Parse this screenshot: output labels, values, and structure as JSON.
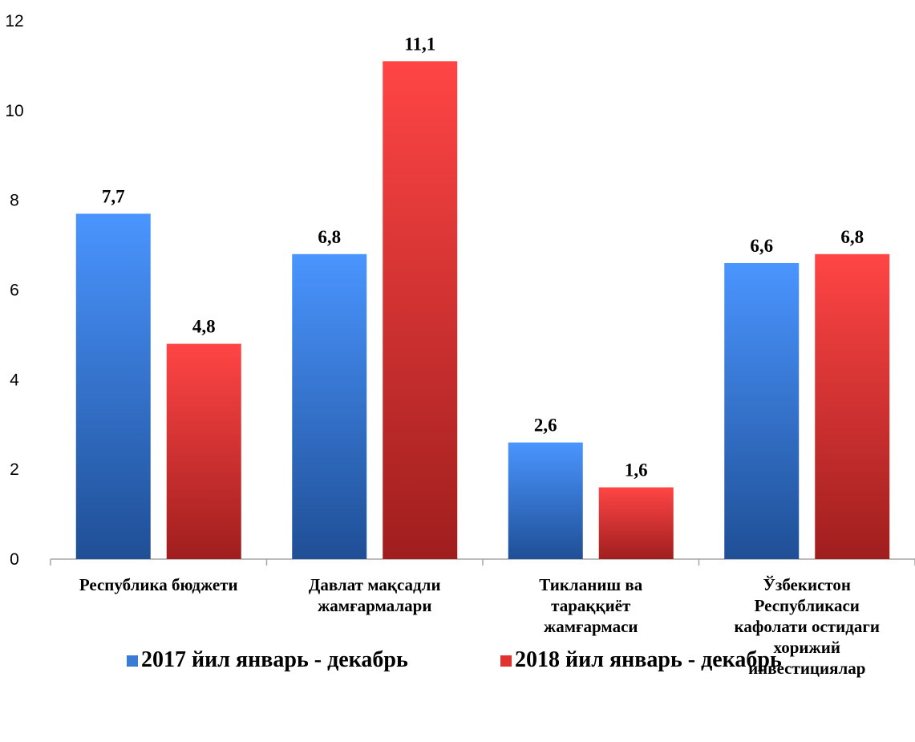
{
  "chart_data": {
    "type": "bar",
    "title": "",
    "xlabel": "",
    "ylabel": "",
    "ylim": [
      0,
      12
    ],
    "yticks": [
      0,
      2,
      4,
      6,
      8,
      10,
      12
    ],
    "grid": false,
    "legend_position": "bottom",
    "categories": [
      [
        "Республика бюджети"
      ],
      [
        "Давлат мақсадли",
        "жамғармалари"
      ],
      [
        "Тикланиш ва",
        "тараққиёт",
        "жамғармаси"
      ],
      [
        "Ўзбекистон",
        "Республикаси",
        "кафолати остидаги",
        "хорижий",
        "инвестициялар"
      ]
    ],
    "series": [
      {
        "name": "2017 йил январь - декабрь",
        "values": [
          7.7,
          6.8,
          2.6,
          6.6
        ],
        "labels": [
          "7,7",
          "6,8",
          "2,6",
          "6,6"
        ],
        "color": "#3a7bd5"
      },
      {
        "name": "2018 йил январь - декабрь",
        "values": [
          4.8,
          11.1,
          1.6,
          6.8
        ],
        "labels": [
          "4,8",
          "11,1",
          "1,6",
          "6,8"
        ],
        "color": "#e0332f"
      }
    ]
  }
}
